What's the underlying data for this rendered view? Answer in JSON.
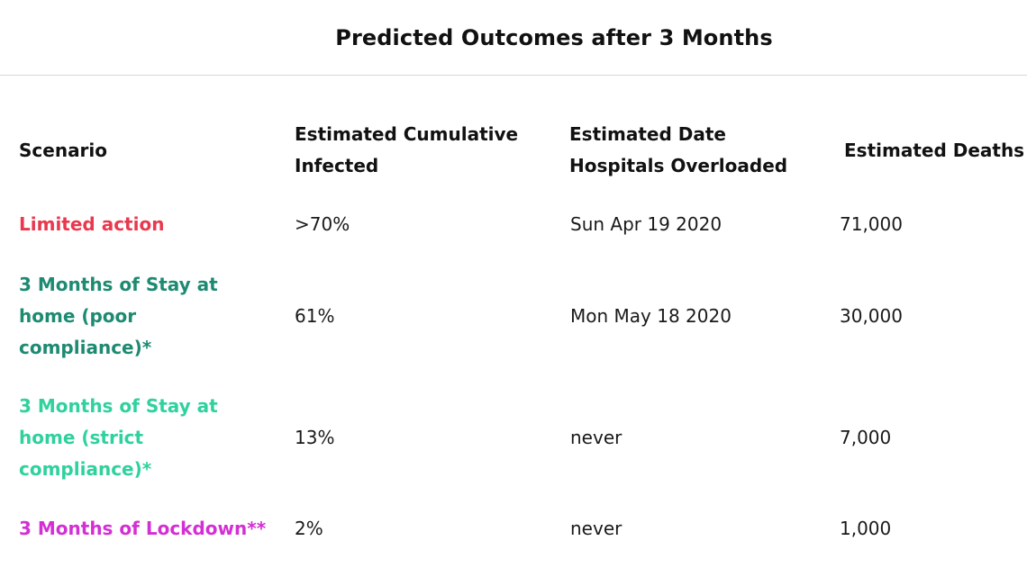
{
  "title": "Predicted Outcomes after 3 Months",
  "columns": [
    "Scenario",
    "Estimated Cumulative Infected",
    "Estimated Date Hospitals Overloaded",
    "Estimated Deaths"
  ],
  "rows": [
    {
      "scenario": "Limited action",
      "color": "#e8394e",
      "infected": ">70%",
      "hospitals_overloaded": "Sun Apr 19 2020",
      "deaths": "71,000"
    },
    {
      "scenario": "3 Months of Stay at home (poor compliance)*",
      "color": "#1d8a72",
      "infected": "61%",
      "hospitals_overloaded": "Mon May 18 2020",
      "deaths": "30,000"
    },
    {
      "scenario": "3 Months of Stay at home (strict compliance)*",
      "color": "#2fd19c",
      "infected": "13%",
      "hospitals_overloaded": "never",
      "deaths": "7,000"
    },
    {
      "scenario": "3 Months of Lockdown**",
      "color": "#d42fd4",
      "infected": "2%",
      "hospitals_overloaded": "never",
      "deaths": "1,000"
    }
  ]
}
